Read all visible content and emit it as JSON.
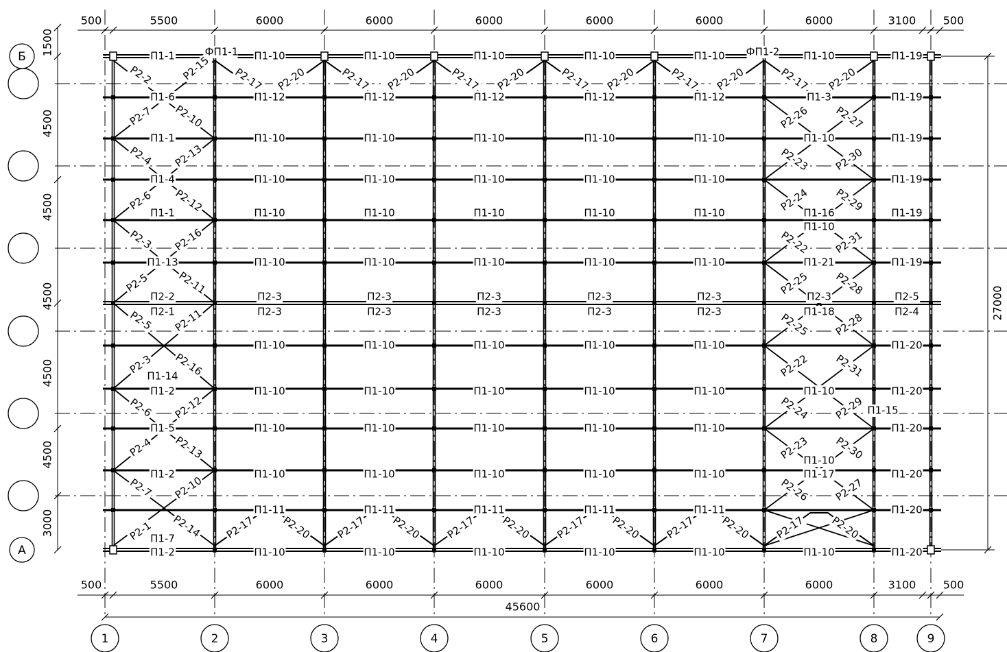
{
  "dims": {
    "top": [
      "500",
      "5500",
      "6000",
      "6000",
      "6000",
      "6000",
      "6000",
      "6000",
      "3100",
      "500"
    ],
    "bottom": [
      "500",
      "5500",
      "6000",
      "6000",
      "6000",
      "6000",
      "6000",
      "6000",
      "3100",
      "500"
    ],
    "left": [
      "1500",
      "4500",
      "4500",
      "4500",
      "4500",
      "4500",
      "3000"
    ],
    "total_h": "45600",
    "total_v": "27000"
  },
  "axes": {
    "columns": [
      "1",
      "2",
      "3",
      "4",
      "5",
      "6",
      "7",
      "8",
      "9"
    ],
    "rows": [
      "Б",
      "",
      "",
      "",
      "",
      "",
      "А"
    ]
  },
  "girders": {
    "top_corner_left": "ФП1-1",
    "top_corner_right": "ФП1-2",
    "row_top": [
      "П1-1",
      "П1-10",
      "П1-10",
      "П1-10",
      "П1-10",
      "П1-10",
      "П1-10",
      "П1-19"
    ],
    "row_1": [
      "П1-6",
      "П1-12",
      "П1-12",
      "П1-12",
      "П1-12",
      "П1-12",
      "П1-3",
      "П1-19"
    ],
    "row_2": [
      "П1-1",
      "П1-10",
      "П1-10",
      "П1-10",
      "П1-10",
      "П1-10",
      "П1-10",
      "П1-19"
    ],
    "row_3": [
      "П1-4",
      "П1-10",
      "П1-10",
      "П1-10",
      "П1-10",
      "П1-10",
      "",
      "П1-19"
    ],
    "row_4": [
      "П1-1",
      "П1-10",
      "П1-10",
      "П1-10",
      "П1-10",
      "П1-10",
      "П1-16",
      "П1-19"
    ],
    "row_4b": [
      "",
      "",
      "",
      "",
      "",
      "",
      "П1-10",
      ""
    ],
    "row_5": [
      "П1-13",
      "П1-10",
      "П1-10",
      "П1-10",
      "П1-10",
      "П1-10",
      "П1-21",
      "П1-19"
    ],
    "row_mid_a": [
      "П2-2",
      "П2-3",
      "П2-3",
      "П2-3",
      "П2-3",
      "П2-3",
      "П2-3",
      "П2-5"
    ],
    "row_mid_b": [
      "П2-1",
      "П2-3",
      "П2-3",
      "П2-3",
      "П2-3",
      "П2-3",
      "П1-18",
      "П2-4"
    ],
    "row_6": [
      "",
      "П1-10",
      "П1-10",
      "П1-10",
      "П1-10",
      "П1-10",
      "",
      "П1-20"
    ],
    "row_7a": [
      "П1-14",
      "",
      "",
      "",
      "",
      "",
      "",
      ""
    ],
    "row_7": [
      "П1-2",
      "П1-10",
      "П1-10",
      "П1-10",
      "П1-10",
      "П1-10",
      "П1-10",
      "П1-20"
    ],
    "row_7_extra": "П1-15",
    "row_8": [
      "П1-5",
      "П1-10",
      "П1-10",
      "П1-10",
      "П1-10",
      "П1-10",
      "",
      "П1-20"
    ],
    "row_9": [
      "П1-2",
      "П1-10",
      "П1-10",
      "П1-10",
      "П1-10",
      "П1-10",
      "П1-17",
      "П1-20"
    ],
    "row_9b": [
      "",
      "",
      "",
      "",
      "",
      "",
      "П1-10",
      ""
    ],
    "row_10": [
      "",
      "П1-11",
      "П1-11",
      "П1-11",
      "П1-11",
      "П1-11",
      "",
      "П1-20"
    ],
    "row_bottom": [
      "П1-2",
      "П1-10",
      "П1-10",
      "П1-10",
      "П1-10",
      "П1-10",
      "П1-10",
      "П1-20"
    ],
    "row_bottom_a": [
      "П1-7",
      "",
      "",
      "",
      "",
      "",
      "",
      ""
    ]
  },
  "braces": {
    "top_zig": [
      "Р2-15",
      "Р2-17",
      "Р2-20",
      "Р2-17",
      "Р2-20",
      "Р2-17",
      "Р2-20",
      "Р2-17",
      "Р2-20",
      "Р2-17",
      "Р2-20",
      "Р2-17",
      "Р2-20"
    ],
    "bottom_zig": [
      "Р2-14",
      "Р2-17",
      "Р2-20",
      "Р2-17",
      "Р2-20",
      "Р2-17",
      "Р2-20",
      "Р2-17",
      "Р2-20",
      "Р2-17",
      "Р2-20",
      "Р2-17",
      "Р2-20"
    ],
    "left_bay": [
      "Р2-2",
      "Р2-7",
      "Р2-10",
      "Р2-4",
      "Р2-13",
      "Р2-6",
      "Р2-12",
      "Р2-3",
      "Р2-16",
      "Р2-5",
      "Р2-11",
      "Р2-5",
      "Р2-11",
      "Р2-3",
      "Р2-16",
      "Р2-6",
      "Р2-12",
      "Р2-4",
      "Р2-13",
      "Р2-7",
      "Р2-10",
      "Р2-1"
    ],
    "right_bay": [
      "Р2-26",
      "Р2-27",
      "Р2-23",
      "Р2-30",
      "Р2-24",
      "Р2-29",
      "Р2-22",
      "Р2-31",
      "Р2-25",
      "Р2-28",
      "Р2-25",
      "Р2-28",
      "Р2-22",
      "Р2-31",
      "Р2-24",
      "Р2-29",
      "Р2-23",
      "Р2-30",
      "Р2-26",
      "Р2-27"
    ]
  }
}
